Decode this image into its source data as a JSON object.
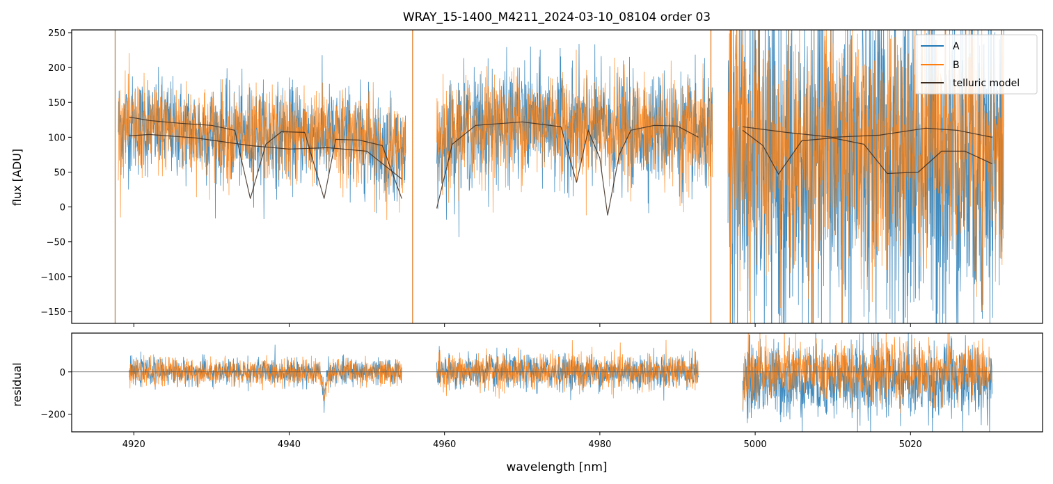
{
  "title": "WRAY_15-1400_M4211_2024-03-10_08104  order 03",
  "colors": {
    "A": "#1f77b4",
    "B": "#ff7f0e",
    "model": "#3b2a1e"
  },
  "chart_data": [
    {
      "type": "line",
      "panel": "top",
      "xlabel": "",
      "ylabel": "flux [ADU]",
      "xlim": [
        4912,
        5037
      ],
      "ylim": [
        -167,
        254
      ],
      "xticks": [
        4920,
        4940,
        4960,
        4980,
        5000,
        5020
      ],
      "yticks": [
        -150,
        -100,
        -50,
        0,
        50,
        100,
        150,
        200,
        250
      ],
      "ytick_labels": [
        "−150",
        "−100",
        "−50",
        "0",
        "50",
        "100",
        "150",
        "200",
        "250"
      ],
      "legend": {
        "placement": "top-right",
        "entries": [
          "A",
          "B",
          "telluric model"
        ]
      },
      "segments": [
        {
          "x_range": [
            4918,
            4955
          ],
          "continuum": [
            [
              4918,
              118
            ],
            [
              4925,
              112
            ],
            [
              4930,
              106
            ],
            [
              4935,
              100
            ],
            [
              4940,
              104
            ],
            [
              4945,
              103
            ],
            [
              4950,
              96
            ],
            [
              4955,
              75
            ]
          ],
          "noise_A": 35,
          "noise_B": 33
        },
        {
          "x_range": [
            4959,
            4994.5
          ],
          "continuum": [
            [
              4959,
              85
            ],
            [
              4962,
              108
            ],
            [
              4966,
              118
            ],
            [
              4972,
              122
            ],
            [
              4978,
              117
            ],
            [
              4982,
              110
            ],
            [
              4988,
              112
            ],
            [
              4994.5,
              100
            ]
          ],
          "noise_A": 40,
          "noise_B": 38
        },
        {
          "x_range": [
            4996.5,
            5032
          ],
          "continuum": [
            [
              4996.5,
              100
            ],
            [
              5003,
              70
            ],
            [
              5010,
              90
            ],
            [
              5016,
              95
            ],
            [
              5020,
              85
            ],
            [
              5026,
              95
            ],
            [
              5032,
              100
            ]
          ],
          "noise_A": 130,
          "noise_B": 90,
          "offset_A": -25
        }
      ],
      "spikes": [
        {
          "x": 4917.6,
          "y_min": -167,
          "y_max": 254
        },
        {
          "x": 4955.9,
          "y_min": -167,
          "y_max": 254
        },
        {
          "x": 4994.3,
          "y_min": -167,
          "y_max": 254
        },
        {
          "x": 4996.8,
          "y_min": -167,
          "y_max": 254
        }
      ],
      "telluric_model": {
        "segment_1": {
          "upper": [
            [
              4919.4,
              129
            ],
            [
              4922,
              124
            ],
            [
              4926,
              120
            ],
            [
              4930,
              117
            ],
            [
              4933,
              110
            ],
            [
              4935,
              12
            ],
            [
              4937,
              90
            ],
            [
              4939,
              108
            ],
            [
              4942,
              107
            ],
            [
              4944.5,
              12
            ],
            [
              4946,
              97
            ],
            [
              4949,
              96
            ],
            [
              4952,
              88
            ],
            [
              4954.5,
              12
            ]
          ],
          "lower": [
            [
              4919.4,
              102
            ],
            [
              4922,
              104
            ],
            [
              4928,
              99
            ],
            [
              4935,
              88
            ],
            [
              4940,
              83
            ],
            [
              4945,
              85
            ],
            [
              4950,
              80
            ],
            [
              4954.5,
              40
            ]
          ]
        },
        "segment_2": [
          [
            4959,
            -2
          ],
          [
            4961,
            90
          ],
          [
            4964,
            117
          ],
          [
            4970,
            122
          ],
          [
            4975,
            115
          ],
          [
            4977,
            35
          ],
          [
            4978.5,
            110
          ],
          [
            4980,
            70
          ],
          [
            4981,
            -12
          ],
          [
            4982.5,
            75
          ],
          [
            4984,
            110
          ],
          [
            4987,
            117
          ],
          [
            4990,
            116
          ],
          [
            4992.7,
            100
          ]
        ],
        "segment_3": {
          "upper": [
            [
              4998.4,
              115
            ],
            [
              5004,
              107
            ],
            [
              5010,
              100
            ],
            [
              5016,
              103
            ],
            [
              5022,
              113
            ],
            [
              5026,
              110
            ],
            [
              5030.5,
              100
            ]
          ],
          "lower": [
            [
              4998.4,
              110
            ],
            [
              5001,
              88
            ],
            [
              5003,
              47
            ],
            [
              5006,
              95
            ],
            [
              5010,
              99
            ],
            [
              5014,
              90
            ],
            [
              5017,
              48
            ],
            [
              5021,
              50
            ],
            [
              5024,
              80
            ],
            [
              5027,
              80
            ],
            [
              5030.5,
              62
            ]
          ]
        }
      }
    },
    {
      "type": "line",
      "panel": "bottom",
      "xlabel": "wavelength [nm]",
      "ylabel": "residual",
      "xlim": [
        4912,
        5037
      ],
      "ylim": [
        -283,
        183
      ],
      "xticks": [
        4920,
        4940,
        4960,
        4980,
        5000,
        5020
      ],
      "yticks": [
        -200,
        0
      ],
      "ytick_labels": [
        "−200",
        "0"
      ],
      "zero_line": 0,
      "segments": [
        {
          "x_range": [
            4919.4,
            4954.5
          ],
          "noise_A": 30,
          "noise_B": 32,
          "dip_x": 4944.5,
          "dip_depth": -110
        },
        {
          "x_range": [
            4959,
            4992.7
          ],
          "noise_A": 40,
          "noise_B": 42
        },
        {
          "x_range": [
            4998.4,
            5030.5
          ],
          "noise_A": 90,
          "noise_B": 70,
          "offset_A": -40
        }
      ]
    }
  ]
}
